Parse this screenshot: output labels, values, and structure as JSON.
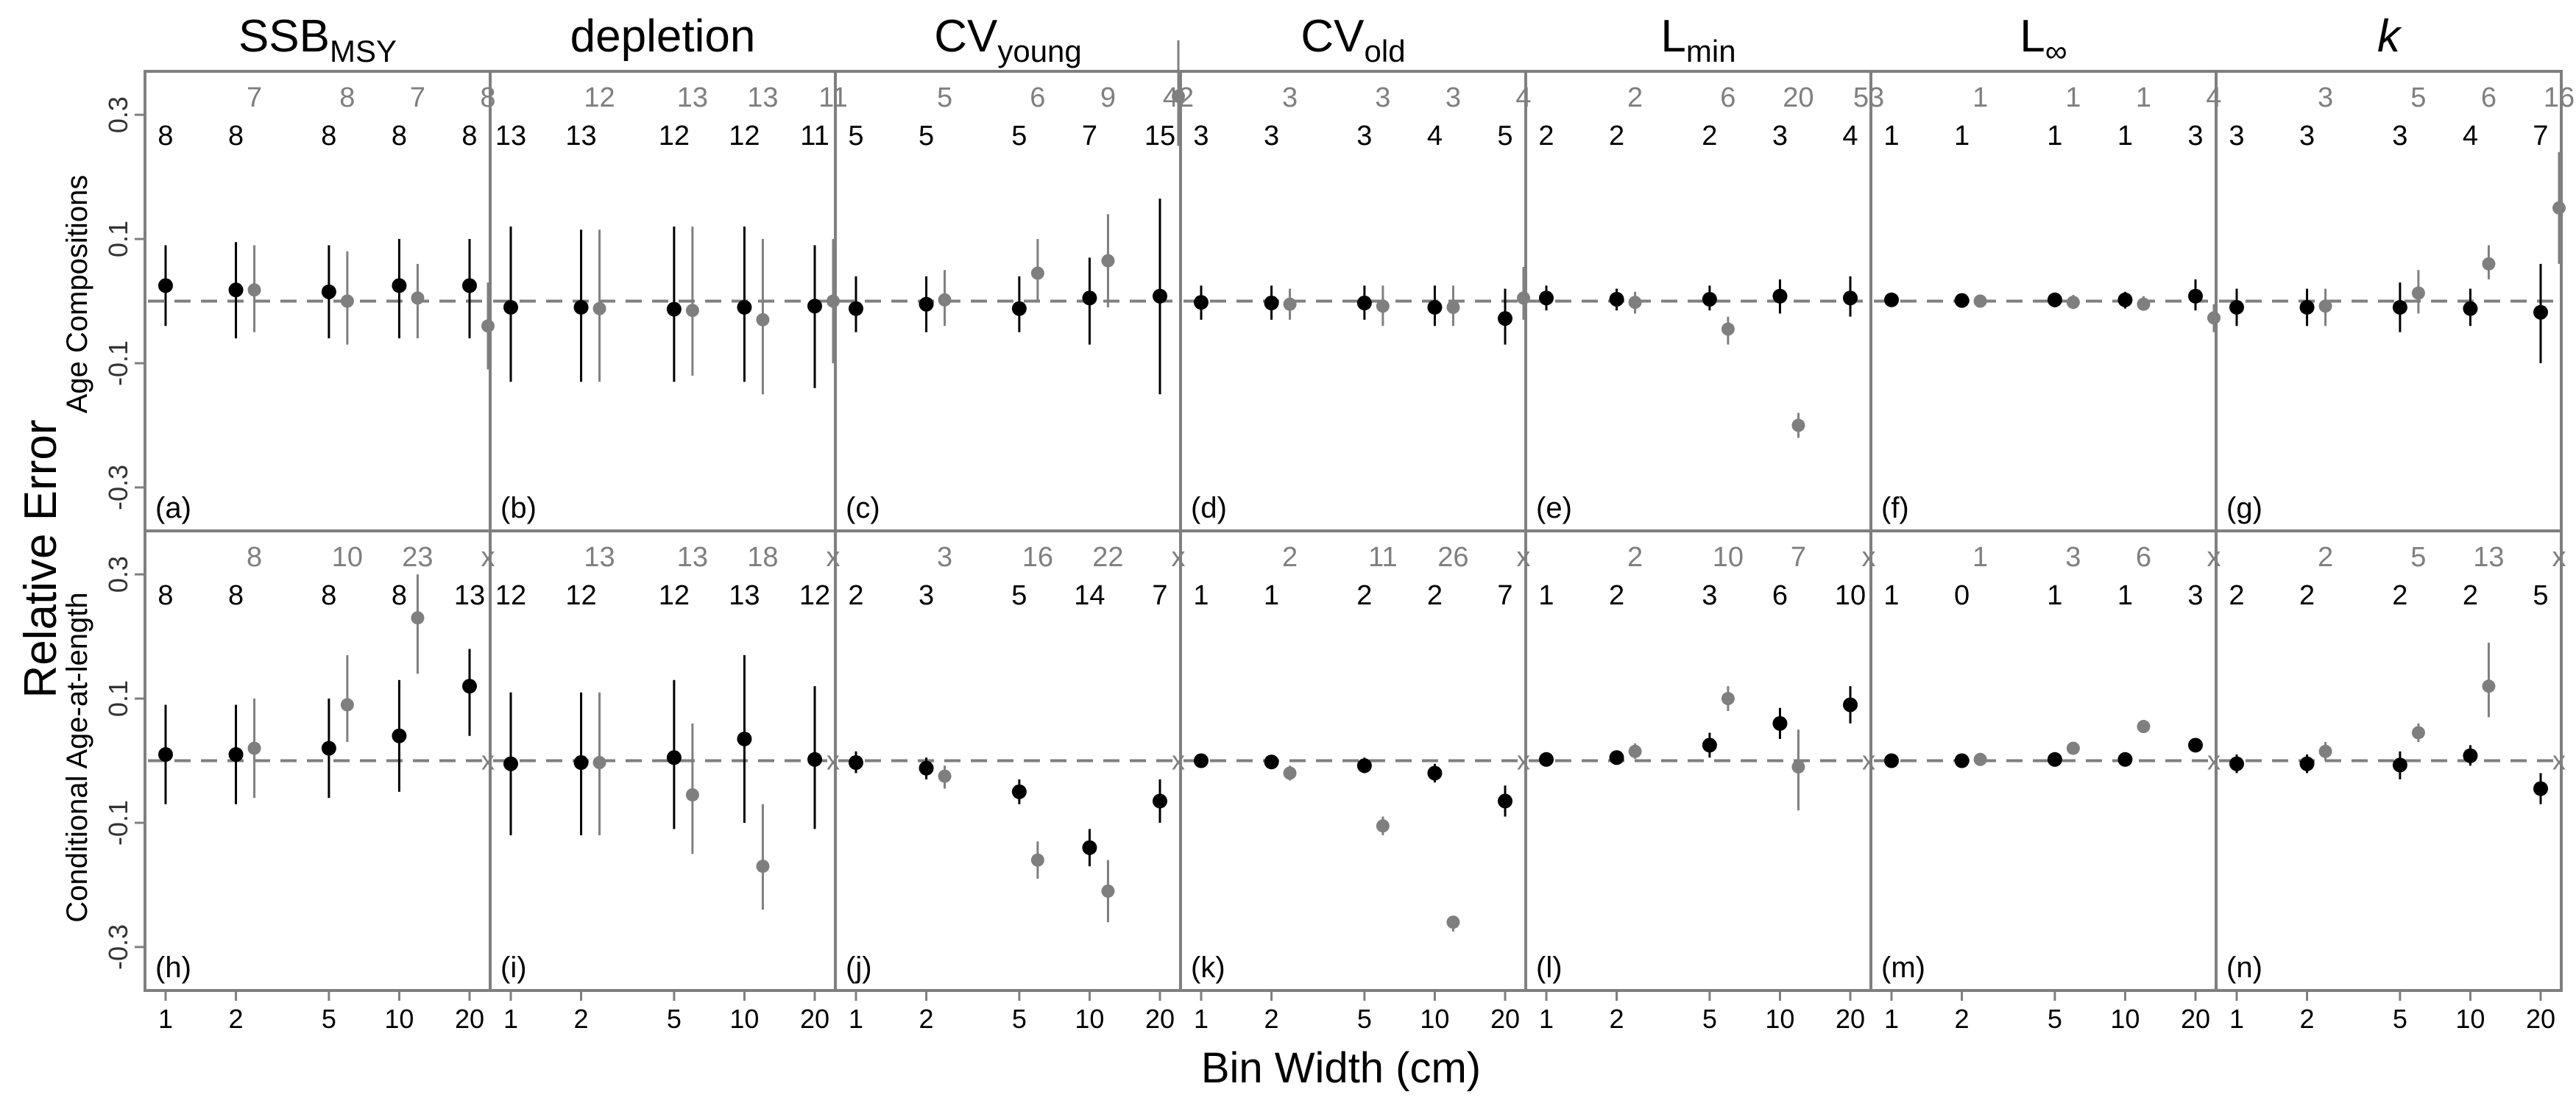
{
  "figure": {
    "x_axis_label": "Bin Width (cm)",
    "y_axis_label": "Relative Error",
    "x_ticks": [
      "1",
      "2",
      "5",
      "10",
      "20"
    ],
    "y_ticks": [
      "0.3",
      "0.1",
      "-0.1",
      "-0.3"
    ],
    "columns": [
      {
        "base": "SSB",
        "sub": "MSY",
        "italic": false
      },
      {
        "base": "depletion",
        "sub": "",
        "italic": false
      },
      {
        "base": "CV",
        "sub": "young",
        "italic": false
      },
      {
        "base": "CV",
        "sub": "old",
        "italic": false
      },
      {
        "base": "L",
        "sub": "min",
        "italic": false
      },
      {
        "base": "L",
        "sub": "∞",
        "italic": false
      },
      {
        "base": "k",
        "sub": "",
        "italic": true
      }
    ],
    "rows": [
      {
        "label": "Age Compositions"
      },
      {
        "label": "Conditional Age-at-length"
      }
    ],
    "colors": {
      "series_black": "#000000",
      "series_gray": "#7f7f7f",
      "frame": "#7f7f7f",
      "reference_line": "#7f7f7f"
    }
  },
  "chart_data": {
    "type": "scatter",
    "ylim": [
      -0.37,
      0.37
    ],
    "reference_line_y": 0,
    "series": [
      {
        "color": "black"
      },
      {
        "color": "gray"
      }
    ],
    "panels": [
      {
        "tag": "(a)",
        "row": 0,
        "col": 0,
        "black": [
          {
            "y": 0.025,
            "lo": -0.04,
            "hi": 0.09
          },
          {
            "y": 0.018,
            "lo": -0.06,
            "hi": 0.095
          },
          {
            "y": 0.015,
            "lo": -0.06,
            "hi": 0.09
          },
          {
            "y": 0.025,
            "lo": -0.06,
            "hi": 0.1
          },
          {
            "y": 0.025,
            "lo": -0.06,
            "hi": 0.1
          }
        ],
        "gray": [
          {
            "y": 0.018,
            "lo": -0.05,
            "hi": 0.09
          },
          {
            "y": 0.0,
            "lo": -0.07,
            "hi": 0.08
          },
          {
            "y": 0.005,
            "lo": -0.06,
            "hi": 0.06
          },
          {
            "y": -0.04,
            "lo": -0.11,
            "hi": 0.03
          }
        ],
        "black_labels": [
          "8",
          "8",
          "8",
          "8",
          "8"
        ],
        "gray_labels": [
          "7",
          "8",
          "7",
          "8"
        ]
      },
      {
        "tag": "(b)",
        "row": 0,
        "col": 1,
        "black": [
          {
            "y": -0.01,
            "lo": -0.13,
            "hi": 0.12
          },
          {
            "y": -0.01,
            "lo": -0.13,
            "hi": 0.115
          },
          {
            "y": -0.013,
            "lo": -0.13,
            "hi": 0.12
          },
          {
            "y": -0.01,
            "lo": -0.13,
            "hi": 0.12
          },
          {
            "y": -0.008,
            "lo": -0.14,
            "hi": 0.09
          }
        ],
        "gray": [
          {
            "y": -0.012,
            "lo": -0.13,
            "hi": 0.115
          },
          {
            "y": -0.015,
            "lo": -0.12,
            "hi": 0.12
          },
          {
            "y": -0.03,
            "lo": -0.15,
            "hi": 0.1
          },
          {
            "y": 0.0,
            "lo": -0.1,
            "hi": 0.1
          }
        ],
        "black_labels": [
          "13",
          "13",
          "12",
          "12",
          "11"
        ],
        "gray_labels": [
          "12",
          "13",
          "13",
          "11"
        ]
      },
      {
        "tag": "(c)",
        "row": 0,
        "col": 2,
        "black": [
          {
            "y": -0.012,
            "lo": -0.05,
            "hi": 0.04
          },
          {
            "y": -0.005,
            "lo": -0.05,
            "hi": 0.04
          },
          {
            "y": -0.012,
            "lo": -0.05,
            "hi": 0.04
          },
          {
            "y": 0.005,
            "lo": -0.07,
            "hi": 0.07
          },
          {
            "y": 0.008,
            "lo": -0.15,
            "hi": 0.165
          }
        ],
        "gray": [
          {
            "y": 0.002,
            "lo": -0.04,
            "hi": 0.05
          },
          {
            "y": 0.045,
            "lo": 0.0,
            "hi": 0.1
          },
          {
            "y": 0.065,
            "lo": -0.01,
            "hi": 0.14
          },
          {
            "y": 0.33,
            "lo": 0.25,
            "hi": 0.42
          }
        ],
        "black_labels": [
          "5",
          "5",
          "5",
          "7",
          "15"
        ],
        "gray_labels": [
          "5",
          "6",
          "9",
          "42"
        ]
      },
      {
        "tag": "(d)",
        "row": 0,
        "col": 3,
        "black": [
          {
            "y": -0.002,
            "lo": -0.03,
            "hi": 0.025
          },
          {
            "y": -0.003,
            "lo": -0.03,
            "hi": 0.025
          },
          {
            "y": -0.003,
            "lo": -0.03,
            "hi": 0.025
          },
          {
            "y": -0.01,
            "lo": -0.04,
            "hi": 0.025
          },
          {
            "y": -0.028,
            "lo": -0.07,
            "hi": 0.02
          }
        ],
        "gray": [
          {
            "y": -0.005,
            "lo": -0.03,
            "hi": 0.02
          },
          {
            "y": -0.008,
            "lo": -0.04,
            "hi": 0.025
          },
          {
            "y": -0.01,
            "lo": -0.04,
            "hi": 0.025
          },
          {
            "y": 0.005,
            "lo": -0.03,
            "hi": 0.055
          }
        ],
        "black_labels": [
          "3",
          "3",
          "3",
          "4",
          "5"
        ],
        "gray_labels": [
          "3",
          "3",
          "3",
          "4"
        ]
      },
      {
        "tag": "(e)",
        "row": 0,
        "col": 4,
        "black": [
          {
            "y": 0.005,
            "lo": -0.015,
            "hi": 0.025
          },
          {
            "y": 0.003,
            "lo": -0.015,
            "hi": 0.02
          },
          {
            "y": 0.003,
            "lo": -0.015,
            "hi": 0.025
          },
          {
            "y": 0.008,
            "lo": -0.02,
            "hi": 0.035
          },
          {
            "y": 0.005,
            "lo": -0.025,
            "hi": 0.04
          }
        ],
        "gray": [
          {
            "y": -0.002,
            "lo": -0.02,
            "hi": 0.015
          },
          {
            "y": -0.045,
            "lo": -0.07,
            "hi": -0.025
          },
          {
            "y": -0.2,
            "lo": -0.22,
            "hi": -0.18
          }
        ],
        "black_labels": [
          "2",
          "2",
          "2",
          "3",
          "4"
        ],
        "gray_labels": [
          "2",
          "6",
          "20",
          "53"
        ]
      },
      {
        "tag": "(f)",
        "row": 0,
        "col": 5,
        "black": [
          {
            "y": 0.002,
            "lo": -0.008,
            "hi": 0.01
          },
          {
            "y": 0.001,
            "lo": -0.01,
            "hi": 0.01
          },
          {
            "y": 0.002,
            "lo": -0.01,
            "hi": 0.012
          },
          {
            "y": 0.002,
            "lo": -0.012,
            "hi": 0.015
          },
          {
            "y": 0.008,
            "lo": -0.015,
            "hi": 0.035
          }
        ],
        "gray": [
          {
            "y": 0.0,
            "lo": -0.01,
            "hi": 0.01
          },
          {
            "y": -0.002,
            "lo": -0.012,
            "hi": 0.01
          },
          {
            "y": -0.005,
            "lo": -0.015,
            "hi": 0.008
          },
          {
            "y": -0.027,
            "lo": -0.05,
            "hi": -0.005
          }
        ],
        "black_labels": [
          "1",
          "1",
          "1",
          "1",
          "3"
        ],
        "gray_labels": [
          "1",
          "1",
          "1",
          "4"
        ]
      },
      {
        "tag": "(g)",
        "row": 0,
        "col": 6,
        "black": [
          {
            "y": -0.01,
            "lo": -0.04,
            "hi": 0.02
          },
          {
            "y": -0.01,
            "lo": -0.04,
            "hi": 0.02
          },
          {
            "y": -0.01,
            "lo": -0.05,
            "hi": 0.03
          },
          {
            "y": -0.012,
            "lo": -0.04,
            "hi": 0.02
          },
          {
            "y": -0.018,
            "lo": -0.1,
            "hi": 0.06
          }
        ],
        "gray": [
          {
            "y": -0.008,
            "lo": -0.04,
            "hi": 0.02
          },
          {
            "y": 0.013,
            "lo": -0.02,
            "hi": 0.05
          },
          {
            "y": 0.06,
            "lo": 0.035,
            "hi": 0.09
          },
          {
            "y": 0.15,
            "lo": 0.06,
            "hi": 0.24
          }
        ],
        "black_labels": [
          "3",
          "3",
          "3",
          "4",
          "7"
        ],
        "gray_labels": [
          "3",
          "5",
          "6",
          "16"
        ]
      },
      {
        "tag": "(h)",
        "row": 1,
        "col": 0,
        "black": [
          {
            "y": 0.01,
            "lo": -0.07,
            "hi": 0.09
          },
          {
            "y": 0.01,
            "lo": -0.07,
            "hi": 0.09
          },
          {
            "y": 0.02,
            "lo": -0.06,
            "hi": 0.1
          },
          {
            "y": 0.04,
            "lo": -0.05,
            "hi": 0.13
          },
          {
            "y": 0.12,
            "lo": 0.04,
            "hi": 0.18
          }
        ],
        "gray": [
          {
            "y": 0.02,
            "lo": -0.06,
            "hi": 0.1
          },
          {
            "y": 0.09,
            "lo": 0.03,
            "hi": 0.17
          },
          {
            "y": 0.23,
            "lo": 0.14,
            "hi": 0.3
          },
          {
            "y": 0.0,
            "x_marker": true
          }
        ],
        "black_labels": [
          "8",
          "8",
          "8",
          "8",
          "13"
        ],
        "gray_labels": [
          "8",
          "10",
          "23",
          "x"
        ]
      },
      {
        "tag": "(i)",
        "row": 1,
        "col": 1,
        "black": [
          {
            "y": -0.005,
            "lo": -0.12,
            "hi": 0.11
          },
          {
            "y": -0.003,
            "lo": -0.12,
            "hi": 0.11
          },
          {
            "y": 0.005,
            "lo": -0.11,
            "hi": 0.13
          },
          {
            "y": 0.035,
            "lo": -0.1,
            "hi": 0.17
          },
          {
            "y": 0.002,
            "lo": -0.11,
            "hi": 0.12
          }
        ],
        "gray": [
          {
            "y": -0.003,
            "lo": -0.12,
            "hi": 0.11
          },
          {
            "y": -0.055,
            "lo": -0.15,
            "hi": 0.06
          },
          {
            "y": -0.17,
            "lo": -0.24,
            "hi": -0.07
          },
          {
            "y": 0.0,
            "x_marker": true
          }
        ],
        "black_labels": [
          "12",
          "12",
          "12",
          "13",
          "12"
        ],
        "gray_labels": [
          "13",
          "13",
          "18",
          "x"
        ]
      },
      {
        "tag": "(j)",
        "row": 1,
        "col": 2,
        "black": [
          {
            "y": -0.003,
            "lo": -0.02,
            "hi": 0.015
          },
          {
            "y": -0.012,
            "lo": -0.03,
            "hi": 0.005
          },
          {
            "y": -0.05,
            "lo": -0.07,
            "hi": -0.03
          },
          {
            "y": -0.14,
            "lo": -0.17,
            "hi": -0.11
          },
          {
            "y": -0.065,
            "lo": -0.1,
            "hi": -0.03
          }
        ],
        "gray": [
          {
            "y": -0.025,
            "lo": -0.045,
            "hi": -0.008
          },
          {
            "y": -0.16,
            "lo": -0.19,
            "hi": -0.13
          },
          {
            "y": -0.21,
            "lo": -0.26,
            "hi": -0.16
          },
          {
            "y": 0.0,
            "x_marker": true
          }
        ],
        "black_labels": [
          "2",
          "3",
          "5",
          "14",
          "7"
        ],
        "gray_labels": [
          "3",
          "16",
          "22",
          "x"
        ]
      },
      {
        "tag": "(k)",
        "row": 1,
        "col": 3,
        "black": [
          {
            "y": 0.0,
            "lo": -0.008,
            "hi": 0.008
          },
          {
            "y": -0.002,
            "lo": -0.012,
            "hi": 0.008
          },
          {
            "y": -0.008,
            "lo": -0.02,
            "hi": 0.005
          },
          {
            "y": -0.02,
            "lo": -0.035,
            "hi": -0.005
          },
          {
            "y": -0.065,
            "lo": -0.09,
            "hi": -0.04
          }
        ],
        "gray": [
          {
            "y": -0.02,
            "lo": -0.032,
            "hi": -0.008
          },
          {
            "y": -0.105,
            "lo": -0.12,
            "hi": -0.09
          },
          {
            "y": -0.26,
            "lo": -0.275,
            "hi": -0.25
          },
          {
            "y": 0.0,
            "x_marker": true
          }
        ],
        "black_labels": [
          "1",
          "1",
          "2",
          "2",
          "7"
        ],
        "gray_labels": [
          "2",
          "11",
          "26",
          "x"
        ]
      },
      {
        "tag": "(l)",
        "row": 1,
        "col": 4,
        "black": [
          {
            "y": 0.002,
            "lo": -0.005,
            "hi": 0.01
          },
          {
            "y": 0.005,
            "lo": -0.005,
            "hi": 0.015
          },
          {
            "y": 0.025,
            "lo": 0.005,
            "hi": 0.045
          },
          {
            "y": 0.06,
            "lo": 0.035,
            "hi": 0.085
          },
          {
            "y": 0.09,
            "lo": 0.06,
            "hi": 0.12
          }
        ],
        "gray": [
          {
            "y": 0.015,
            "lo": 0.003,
            "hi": 0.028
          },
          {
            "y": 0.1,
            "lo": 0.08,
            "hi": 0.12
          },
          {
            "y": -0.01,
            "lo": -0.08,
            "hi": 0.05
          },
          {
            "y": 0.0,
            "x_marker": true
          }
        ],
        "black_labels": [
          "1",
          "2",
          "3",
          "6",
          "10"
        ],
        "gray_labels": [
          "2",
          "10",
          "7",
          "x"
        ]
      },
      {
        "tag": "(m)",
        "row": 1,
        "col": 5,
        "black": [
          {
            "y": 0.0,
            "lo": -0.005,
            "hi": 0.005
          },
          {
            "y": 0.0,
            "lo": -0.005,
            "hi": 0.005
          },
          {
            "y": 0.002,
            "lo": -0.004,
            "hi": 0.008
          },
          {
            "y": 0.002,
            "lo": -0.004,
            "hi": 0.008
          },
          {
            "y": 0.025,
            "lo": 0.015,
            "hi": 0.035
          }
        ],
        "gray": [
          {
            "y": 0.002,
            "lo": -0.005,
            "hi": 0.01
          },
          {
            "y": 0.02,
            "lo": 0.01,
            "hi": 0.03
          },
          {
            "y": 0.055,
            "lo": 0.045,
            "hi": 0.065
          },
          {
            "y": 0.0,
            "x_marker": true
          }
        ],
        "black_labels": [
          "1",
          "0",
          "1",
          "1",
          "3"
        ],
        "gray_labels": [
          "1",
          "3",
          "6",
          "x"
        ]
      },
      {
        "tag": "(n)",
        "row": 1,
        "col": 6,
        "black": [
          {
            "y": -0.005,
            "lo": -0.02,
            "hi": 0.01
          },
          {
            "y": -0.005,
            "lo": -0.02,
            "hi": 0.01
          },
          {
            "y": -0.007,
            "lo": -0.03,
            "hi": 0.015
          },
          {
            "y": 0.008,
            "lo": -0.008,
            "hi": 0.025
          },
          {
            "y": -0.045,
            "lo": -0.07,
            "hi": -0.02
          }
        ],
        "gray": [
          {
            "y": 0.015,
            "lo": 0.0,
            "hi": 0.03
          },
          {
            "y": 0.045,
            "lo": 0.03,
            "hi": 0.06
          },
          {
            "y": 0.12,
            "lo": 0.07,
            "hi": 0.19
          },
          {
            "y": 0.0,
            "x_marker": true
          }
        ],
        "black_labels": [
          "2",
          "2",
          "2",
          "2",
          "5"
        ],
        "gray_labels": [
          "2",
          "5",
          "13",
          "x"
        ]
      }
    ]
  }
}
